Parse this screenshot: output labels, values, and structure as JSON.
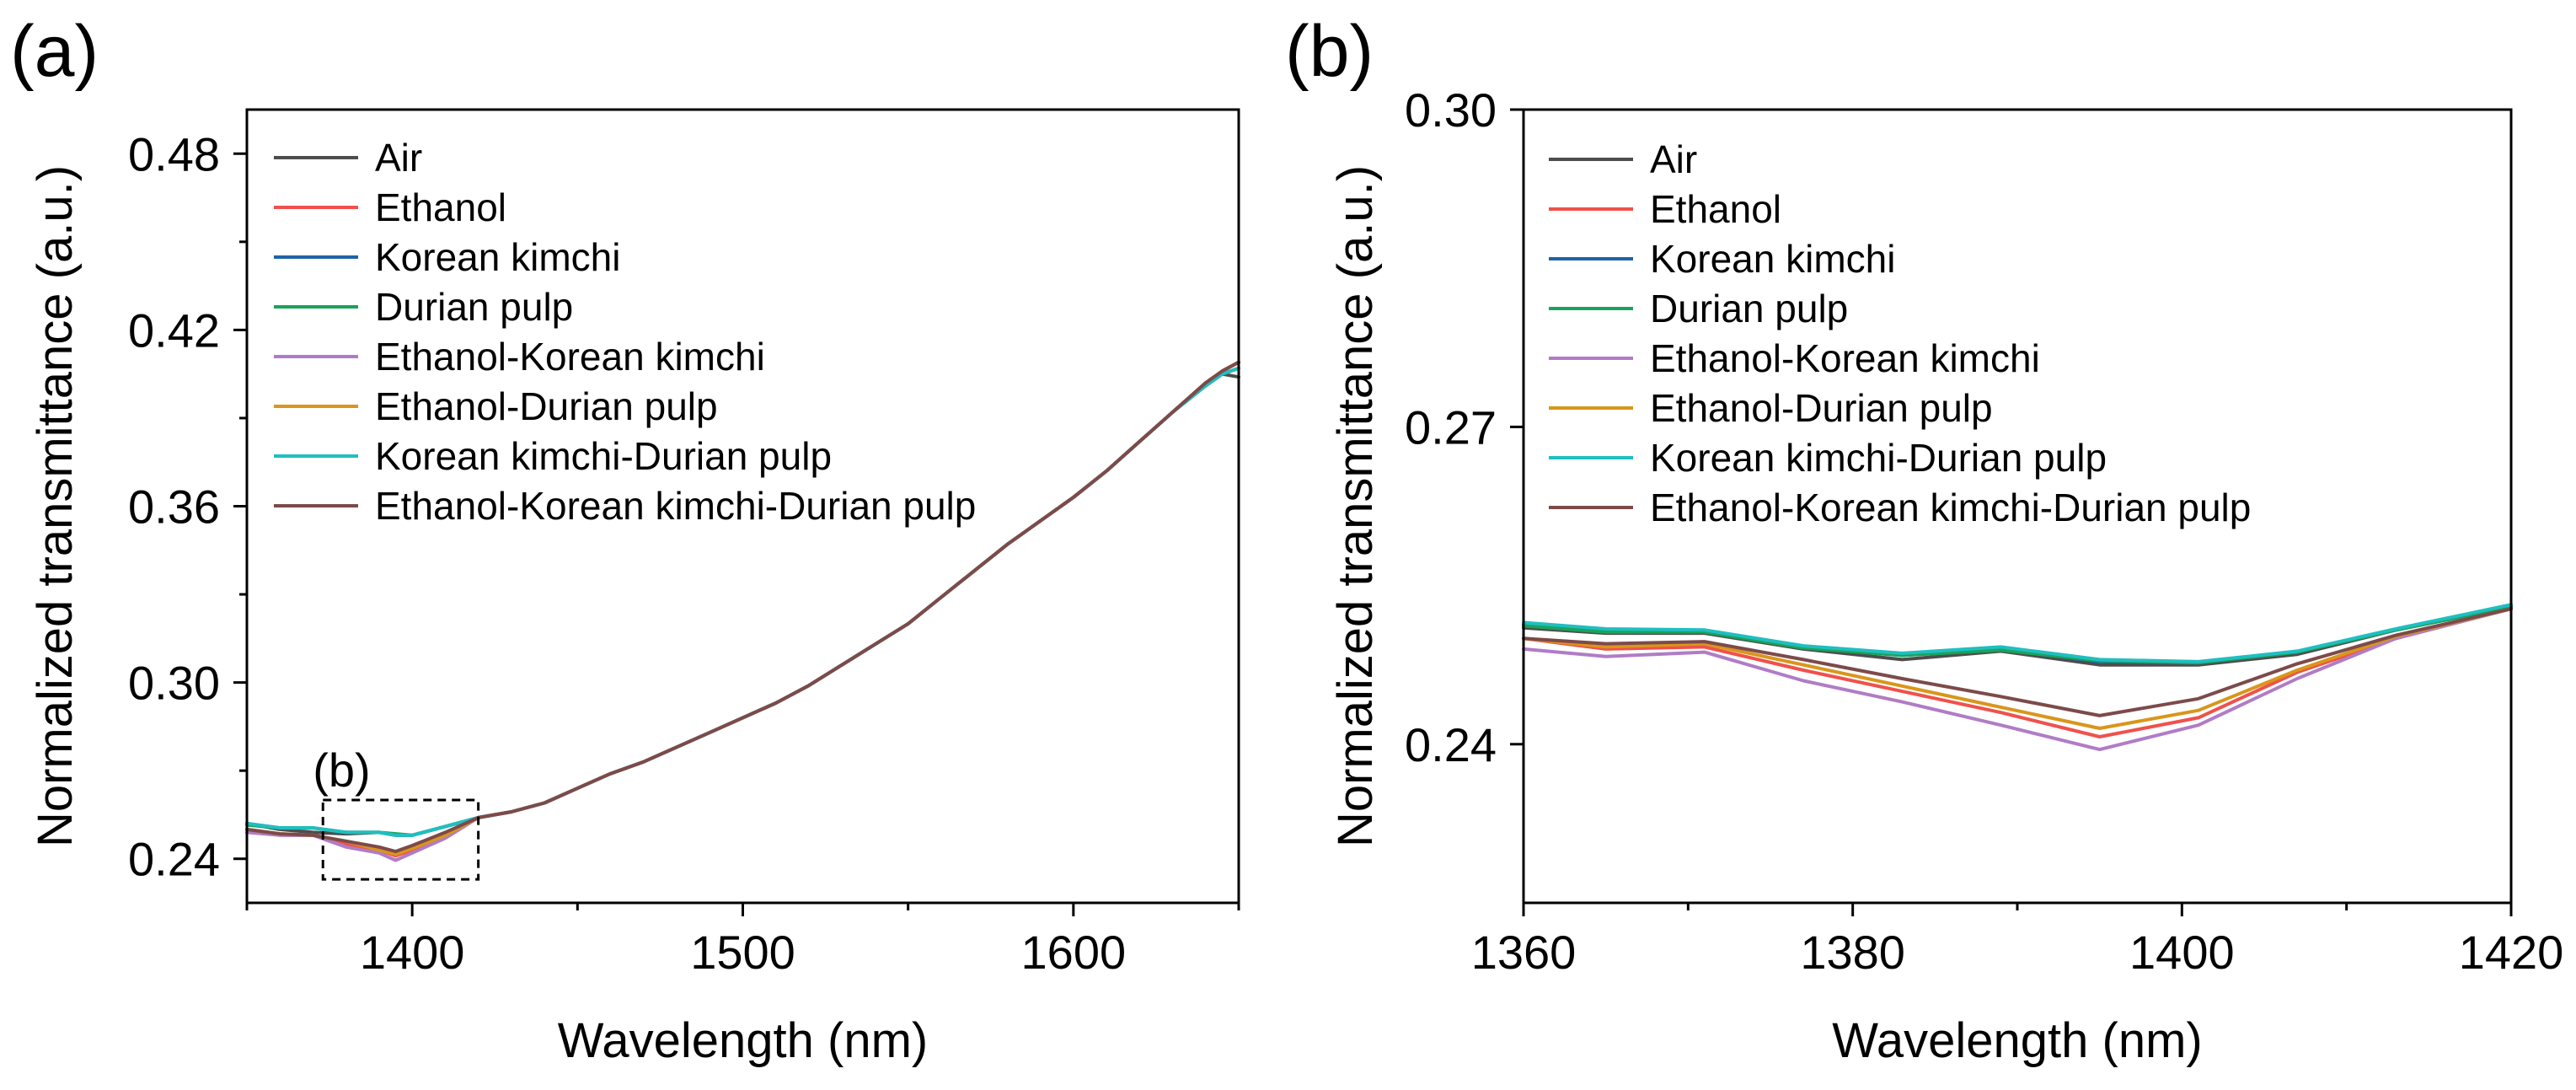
{
  "chart_data": [
    {
      "panel_label": "(a)",
      "type": "line",
      "xlabel": "Wavelength (nm)",
      "ylabel": "Normalized transmittance (a.u.)",
      "xlim": [
        1350,
        1650
      ],
      "ylim": [
        0.225,
        0.495
      ],
      "xticks": [
        1400,
        1500,
        1600
      ],
      "xtick_labels": [
        "1400",
        "1500",
        "1600"
      ],
      "yticks": [
        0.24,
        0.3,
        0.36,
        0.42,
        0.48
      ],
      "ytick_labels": [
        "0.24",
        "0.30",
        "0.36",
        "0.42",
        "0.48"
      ],
      "legend_position": "top-left",
      "inset_box": {
        "label": "(b)",
        "x_range": [
          1373,
          1420
        ],
        "y_range": [
          0.233,
          0.26
        ]
      },
      "x": [
        1350,
        1360,
        1370,
        1380,
        1390,
        1395,
        1400,
        1410,
        1420,
        1430,
        1440,
        1450,
        1460,
        1470,
        1480,
        1490,
        1500,
        1510,
        1520,
        1530,
        1540,
        1550,
        1560,
        1570,
        1580,
        1590,
        1600,
        1610,
        1620,
        1630,
        1640,
        1645,
        1650
      ],
      "series": [
        {
          "name": "Air",
          "color": "#4d4d4d",
          "values": [
            0.252,
            0.25,
            0.249,
            0.2485,
            0.249,
            0.248,
            0.248,
            0.251,
            0.254,
            0.256,
            0.259,
            0.264,
            0.269,
            0.273,
            0.278,
            0.283,
            0.288,
            0.293,
            0.299,
            0.306,
            0.313,
            0.32,
            0.329,
            0.338,
            0.347,
            0.355,
            0.363,
            0.372,
            0.382,
            0.392,
            0.402,
            0.405,
            0.404
          ]
        },
        {
          "name": "Ethanol",
          "color": "#f0514c",
          "values": [
            0.25,
            0.248,
            0.248,
            0.245,
            0.243,
            0.241,
            0.243,
            0.248,
            0.254,
            0.256,
            0.259,
            0.264,
            0.269,
            0.273,
            0.278,
            0.283,
            0.288,
            0.293,
            0.299,
            0.306,
            0.313,
            0.32,
            0.329,
            0.338,
            0.347,
            0.355,
            0.363,
            0.372,
            0.382,
            0.392,
            0.402,
            0.406,
            0.409
          ]
        },
        {
          "name": "Korean kimchi",
          "color": "#1f63a8",
          "values": [
            0.252,
            0.2505,
            0.2505,
            0.249,
            0.249,
            0.248,
            0.248,
            0.251,
            0.254,
            0.256,
            0.259,
            0.264,
            0.269,
            0.273,
            0.278,
            0.283,
            0.288,
            0.293,
            0.299,
            0.306,
            0.313,
            0.32,
            0.329,
            0.338,
            0.347,
            0.355,
            0.363,
            0.372,
            0.382,
            0.392,
            0.401,
            0.405,
            0.407
          ]
        },
        {
          "name": "Durian pulp",
          "color": "#1aa35c",
          "values": [
            0.2515,
            0.2505,
            0.2505,
            0.249,
            0.249,
            0.2485,
            0.248,
            0.251,
            0.254,
            0.256,
            0.259,
            0.264,
            0.269,
            0.273,
            0.278,
            0.283,
            0.288,
            0.293,
            0.299,
            0.306,
            0.313,
            0.32,
            0.329,
            0.338,
            0.347,
            0.355,
            0.363,
            0.372,
            0.382,
            0.392,
            0.401,
            0.405,
            0.407
          ]
        },
        {
          "name": "Ethanol-Korean kimchi",
          "color": "#b07cc6",
          "values": [
            0.249,
            0.248,
            0.248,
            0.244,
            0.242,
            0.2395,
            0.242,
            0.247,
            0.254,
            0.256,
            0.259,
            0.264,
            0.269,
            0.273,
            0.278,
            0.283,
            0.288,
            0.293,
            0.299,
            0.306,
            0.313,
            0.32,
            0.329,
            0.338,
            0.347,
            0.355,
            0.363,
            0.372,
            0.382,
            0.392,
            0.402,
            0.406,
            0.409
          ]
        },
        {
          "name": "Ethanol-Durian pulp",
          "color": "#d9961a",
          "values": [
            0.25,
            0.2485,
            0.248,
            0.246,
            0.243,
            0.2415,
            0.2435,
            0.248,
            0.254,
            0.256,
            0.259,
            0.264,
            0.269,
            0.273,
            0.278,
            0.283,
            0.288,
            0.293,
            0.299,
            0.306,
            0.313,
            0.32,
            0.329,
            0.338,
            0.347,
            0.355,
            0.363,
            0.372,
            0.382,
            0.392,
            0.402,
            0.406,
            0.409
          ]
        },
        {
          "name": "Korean kimchi-Durian pulp",
          "color": "#1fbfc0",
          "values": [
            0.252,
            0.2505,
            0.2505,
            0.249,
            0.249,
            0.248,
            0.248,
            0.251,
            0.254,
            0.256,
            0.259,
            0.264,
            0.269,
            0.273,
            0.278,
            0.283,
            0.288,
            0.293,
            0.299,
            0.306,
            0.313,
            0.32,
            0.329,
            0.338,
            0.347,
            0.355,
            0.363,
            0.372,
            0.382,
            0.392,
            0.401,
            0.405,
            0.407
          ]
        },
        {
          "name": "Ethanol-Korean kimchi-Durian pulp",
          "color": "#7d4a4a",
          "values": [
            0.25,
            0.2485,
            0.248,
            0.246,
            0.244,
            0.2425,
            0.2445,
            0.249,
            0.254,
            0.256,
            0.259,
            0.264,
            0.269,
            0.273,
            0.278,
            0.283,
            0.288,
            0.293,
            0.299,
            0.306,
            0.313,
            0.32,
            0.329,
            0.338,
            0.347,
            0.355,
            0.363,
            0.372,
            0.382,
            0.392,
            0.402,
            0.406,
            0.409
          ]
        }
      ]
    },
    {
      "panel_label": "(b)",
      "type": "line",
      "xlabel": "Wavelength (nm)",
      "ylabel": "Normalized transmittance (a.u.)",
      "xlim": [
        1360,
        1420
      ],
      "ylim": [
        0.225,
        0.3
      ],
      "xticks": [
        1360,
        1380,
        1400,
        1420
      ],
      "xtick_labels": [
        "1360",
        "1380",
        "1400",
        "1420"
      ],
      "yticks": [
        0.24,
        0.27,
        0.3
      ],
      "ytick_labels": [
        "0.24",
        "0.27",
        "0.30"
      ],
      "legend_position": "top-left",
      "x": [
        1360,
        1365,
        1371,
        1377,
        1383,
        1389,
        1395,
        1401,
        1407,
        1413,
        1420
      ],
      "series": [
        {
          "name": "Air",
          "color": "#4d4d4d",
          "values": [
            0.251,
            0.2505,
            0.2505,
            0.249,
            0.248,
            0.2488,
            0.2475,
            0.2475,
            0.2485,
            0.2508,
            0.253
          ]
        },
        {
          "name": "Ethanol",
          "color": "#f0514c",
          "values": [
            0.25,
            0.249,
            0.2492,
            0.247,
            0.245,
            0.243,
            0.2407,
            0.2425,
            0.2468,
            0.25,
            0.2528
          ]
        },
        {
          "name": "Korean kimchi",
          "color": "#1f63a8",
          "values": [
            0.2513,
            0.2508,
            0.2507,
            0.2492,
            0.2484,
            0.249,
            0.2478,
            0.2477,
            0.2487,
            0.2508,
            0.253
          ]
        },
        {
          "name": "Durian pulp",
          "color": "#1aa35c",
          "values": [
            0.2512,
            0.2506,
            0.2506,
            0.2491,
            0.2484,
            0.2489,
            0.2479,
            0.2477,
            0.2487,
            0.2508,
            0.253
          ]
        },
        {
          "name": "Ethanol-Korean kimchi",
          "color": "#b07cc6",
          "values": [
            0.249,
            0.2483,
            0.2487,
            0.246,
            0.244,
            0.2418,
            0.2395,
            0.2418,
            0.2462,
            0.25,
            0.2528
          ]
        },
        {
          "name": "Ethanol-Durian pulp",
          "color": "#d9961a",
          "values": [
            0.25,
            0.2492,
            0.2495,
            0.2475,
            0.2455,
            0.2435,
            0.2415,
            0.2432,
            0.247,
            0.2502,
            0.2528
          ]
        },
        {
          "name": "Korean kimchi-Durian pulp",
          "color": "#1fbfc0",
          "values": [
            0.2515,
            0.2509,
            0.2508,
            0.2493,
            0.2486,
            0.2492,
            0.248,
            0.2478,
            0.2488,
            0.2509,
            0.2532
          ]
        },
        {
          "name": "Ethanol-Korean kimchi-Durian pulp",
          "color": "#7d4a4a",
          "values": [
            0.25,
            0.2495,
            0.2497,
            0.248,
            0.2462,
            0.2445,
            0.2427,
            0.2443,
            0.2476,
            0.2503,
            0.2528
          ]
        }
      ]
    }
  ]
}
